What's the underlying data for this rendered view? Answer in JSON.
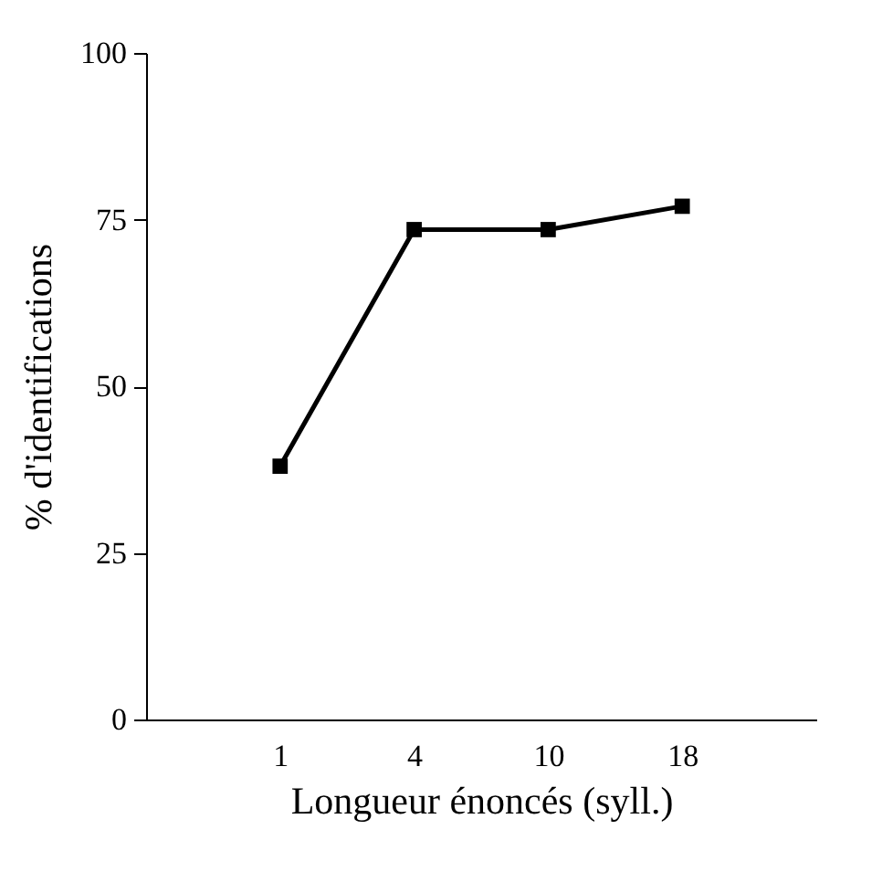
{
  "chart_data": {
    "type": "line",
    "xlabel": "Longueur énoncés (syll.)",
    "ylabel": "% d'identifications",
    "categories": [
      "1",
      "4",
      "10",
      "18"
    ],
    "series": [
      {
        "color": "#000000",
        "values": [
          38,
          73.5,
          73.5,
          77
        ]
      }
    ],
    "ylim": [
      0,
      100
    ],
    "yticks": [
      0,
      25,
      50,
      75,
      100
    ],
    "grid": false,
    "legend": false,
    "marker": "square",
    "line_style": "solid"
  }
}
